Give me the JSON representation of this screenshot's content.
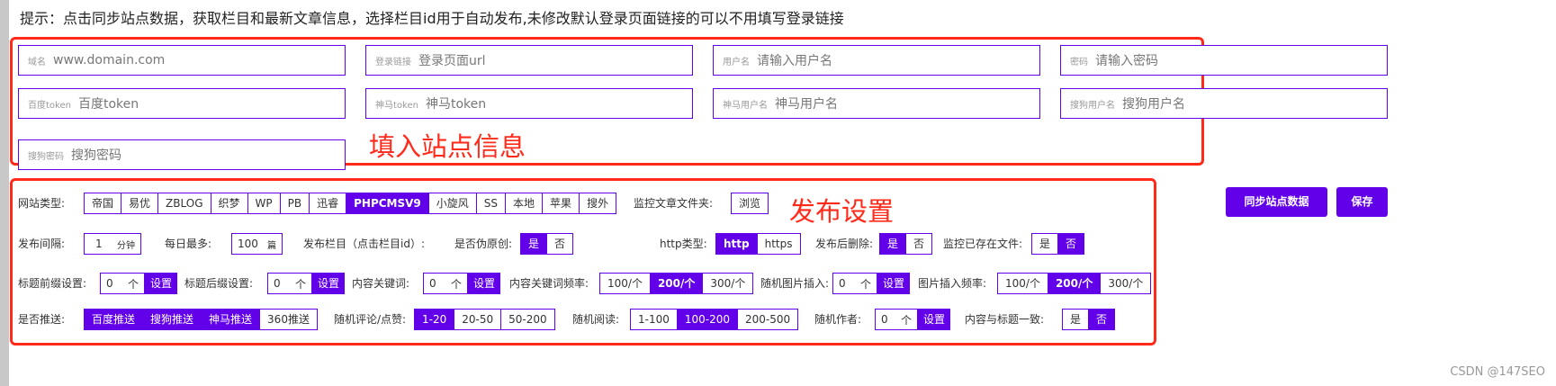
{
  "tip": "提示：点击同步站点数据，获取栏目和最新文章信息，选择栏目id用于自动发布,未修改默认登录页面链接的可以不用填写登录链接",
  "site_fields": [
    {
      "label": "域名",
      "placeholder": "www.domain.com"
    },
    {
      "label": "登录链接",
      "placeholder": "登录页面url"
    },
    {
      "label": "用户名",
      "placeholder": "请输入用户名"
    },
    {
      "label": "密码",
      "placeholder": "请输入密码"
    },
    {
      "label": "百度token",
      "placeholder": "百度token"
    },
    {
      "label": "神马token",
      "placeholder": "神马token"
    },
    {
      "label": "神马用户名",
      "placeholder": "神马用户名"
    },
    {
      "label": "搜狗用户名",
      "placeholder": "搜狗用户名"
    },
    {
      "label": "搜狗密码",
      "placeholder": "搜狗密码"
    }
  ],
  "annot_site": "填入站点信息",
  "annot_publish": "发布设置",
  "row1": {
    "type_label": "网站类型:",
    "types": [
      "帝国",
      "易优",
      "ZBLOG",
      "织梦",
      "WP",
      "PB",
      "迅睿",
      "PHPCMSV9",
      "小旋风",
      "SS",
      "本地",
      "苹果",
      "搜外"
    ],
    "type_selected": "PHPCMSV9",
    "folder_label": "监控文章文件夹:",
    "browse": "浏览"
  },
  "row2": {
    "interval_label": "发布间隔:",
    "interval_value": "1",
    "interval_unit": "分钟",
    "daily_label": "每日最多:",
    "daily_value": "100",
    "daily_unit": "篇",
    "column_label": "发布栏目（点击栏目id）:",
    "pseudo_label": "是否伪原创:",
    "yes": "是",
    "no": "否",
    "http_label": "http类型:",
    "http": "http",
    "https": "https",
    "delete_label": "发布后删除:",
    "monitor_label": "监控已存在文件:"
  },
  "row3": {
    "prefix_label": "标题前缀设置:",
    "suffix_label": "标题后缀设置:",
    "kw_label": "内容关键词:",
    "kwfreq_label": "内容关键词频率:",
    "img_label": "随机图片插入:",
    "imgfreq_label": "图片插入频率:",
    "zero": "0",
    "unit": "个",
    "set": "设置",
    "freqs": [
      "100/个",
      "200/个",
      "300/个"
    ]
  },
  "row4": {
    "push_label": "是否推送:",
    "push": [
      "百度推送",
      "搜狗推送",
      "神马推送",
      "360推送"
    ],
    "comment_label": "随机评论/点赞:",
    "comments": [
      "1-20",
      "20-50",
      "50-200"
    ],
    "read_label": "随机阅读:",
    "reads": [
      "1-100",
      "100-200",
      "200-500"
    ],
    "author_label": "随机作者:",
    "match_label": "内容与标题一致:"
  },
  "buttons": {
    "sync": "同步站点数据",
    "save": "保存"
  },
  "watermark": "CSDN @147SEO",
  "accent": "#6200ea",
  "annot_color": "#ff2a1a"
}
